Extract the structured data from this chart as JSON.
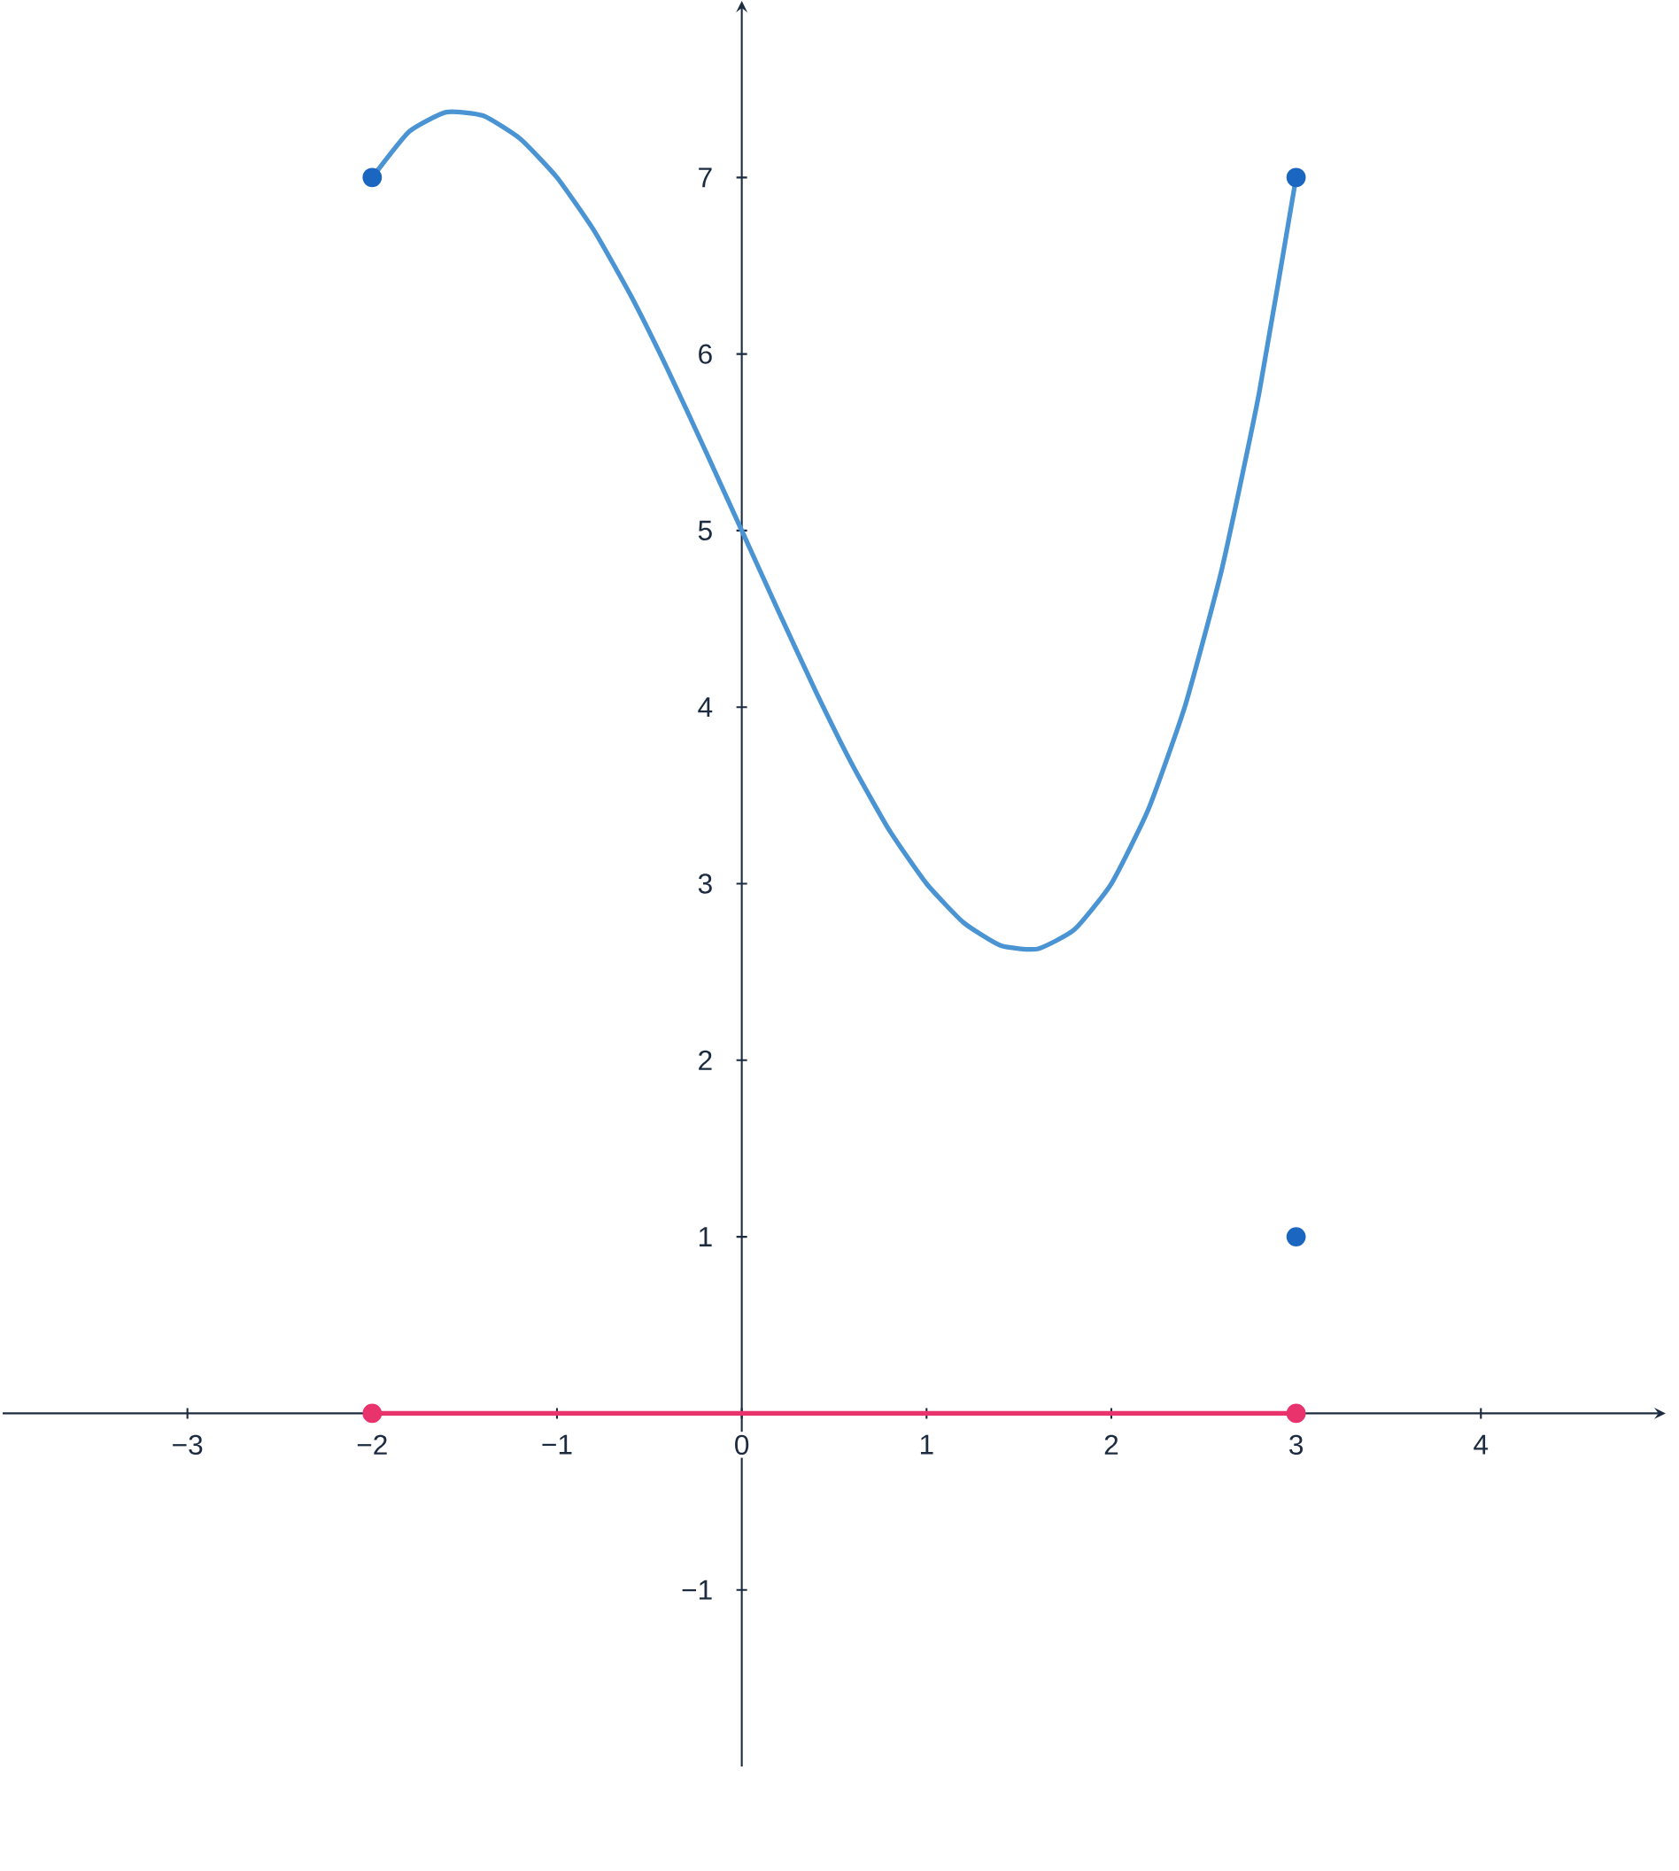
{
  "chart_data": {
    "type": "line",
    "xlim": [
      -4,
      5
    ],
    "ylim": [
      -2,
      8
    ],
    "xticks": [
      {
        "value": -3,
        "label": "−3"
      },
      {
        "value": -2,
        "label": "−2"
      },
      {
        "value": -1,
        "label": "−1"
      },
      0,
      1,
      2,
      3,
      4
    ],
    "yticks": [
      {
        "value": -1,
        "label": "−1"
      },
      1,
      2,
      3,
      4,
      5,
      6,
      7
    ],
    "series": [
      {
        "color": "#4a94d4",
        "x": [
          -2,
          -1.8,
          -1.6,
          -1.4,
          -1.2,
          -1,
          -0.8,
          -0.6,
          -0.4,
          -0.2,
          0,
          0.2,
          0.4,
          0.6,
          0.8,
          1,
          1.2,
          1.4,
          1.6,
          1.8,
          2,
          2.2,
          2.4,
          2.6,
          2.8,
          3
        ],
        "values": [
          7,
          7.26,
          7.37,
          7.35,
          7.22,
          7,
          6.7,
          6.33,
          5.91,
          5.46,
          5,
          4.54,
          4.09,
          3.67,
          3.3,
          3,
          2.78,
          2.65,
          2.63,
          2.74,
          3,
          3.42,
          4.01,
          4.79,
          5.78,
          7
        ]
      },
      {
        "type": "scatter",
        "marker": "circle",
        "color": "#1a66c0",
        "x": [
          -2,
          3,
          3
        ],
        "values": [
          7,
          7,
          1
        ]
      },
      {
        "color": "#e8336d",
        "x": [
          -2,
          3
        ],
        "values": [
          0,
          0
        ]
      },
      {
        "type": "scatter",
        "marker": "circle",
        "color": "#e8336d",
        "x": [
          -2,
          3
        ],
        "values": [
          0,
          0
        ]
      }
    ]
  }
}
